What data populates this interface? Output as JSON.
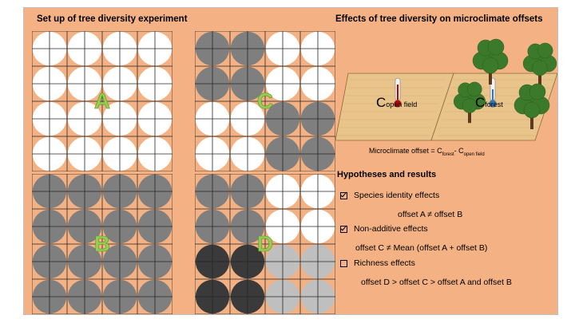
{
  "left_heading": "Set up of tree diversity experiment",
  "right_heading": "Effects of tree diversity on microclimate offsets",
  "panels": {
    "A": {
      "label": "A",
      "rows": [
        [
          "W",
          "W",
          "W",
          "W"
        ],
        [
          "W",
          "W",
          "W",
          "W"
        ],
        [
          "W",
          "W",
          "W",
          "W"
        ],
        [
          "W",
          "W",
          "W",
          "W"
        ]
      ]
    },
    "B": {
      "label": "B",
      "rows": [
        [
          "G",
          "G",
          "G",
          "G"
        ],
        [
          "G",
          "G",
          "G",
          "G"
        ],
        [
          "G",
          "G",
          "G",
          "G"
        ],
        [
          "G",
          "G",
          "G",
          "G"
        ]
      ]
    },
    "C": {
      "label": "C",
      "rows": [
        [
          "G",
          "G",
          "W",
          "W"
        ],
        [
          "G",
          "G",
          "W",
          "W"
        ],
        [
          "W",
          "W",
          "G",
          "G"
        ],
        [
          "W",
          "W",
          "G",
          "G"
        ]
      ]
    },
    "D": {
      "label": "D",
      "rows": [
        [
          "G",
          "G",
          "W",
          "W"
        ],
        [
          "G",
          "G",
          "W",
          "W"
        ],
        [
          "K",
          "K",
          "L",
          "L"
        ],
        [
          "K",
          "K",
          "L",
          "L"
        ]
      ]
    }
  },
  "colors": {
    "W": "#ffffff",
    "G": "#7f7f7f",
    "K": "#3a3a3a",
    "L": "#bfbfbf",
    "background": "#f4b183",
    "label_green": "#92d050"
  },
  "illustration": {
    "open_field_C": "C",
    "open_field_sub": "open field",
    "forest_C": "C",
    "forest_sub": "forest"
  },
  "formula": {
    "text": "Microclimate offset = C",
    "sub1": "forest",
    "minus": "- C",
    "sub2": "open field"
  },
  "hypotheses": {
    "title": "Hypotheses and results",
    "items": [
      {
        "label": "Species identity effects",
        "result": "offset A ≠ offset B",
        "checked": true
      },
      {
        "label": "Non-additive effects",
        "result": "offset C ≠ Mean (offset A + offset B)",
        "checked": true
      },
      {
        "label": "Richness effects",
        "result": "offset D > offset C > offset A and offset B",
        "checked": false
      }
    ]
  }
}
